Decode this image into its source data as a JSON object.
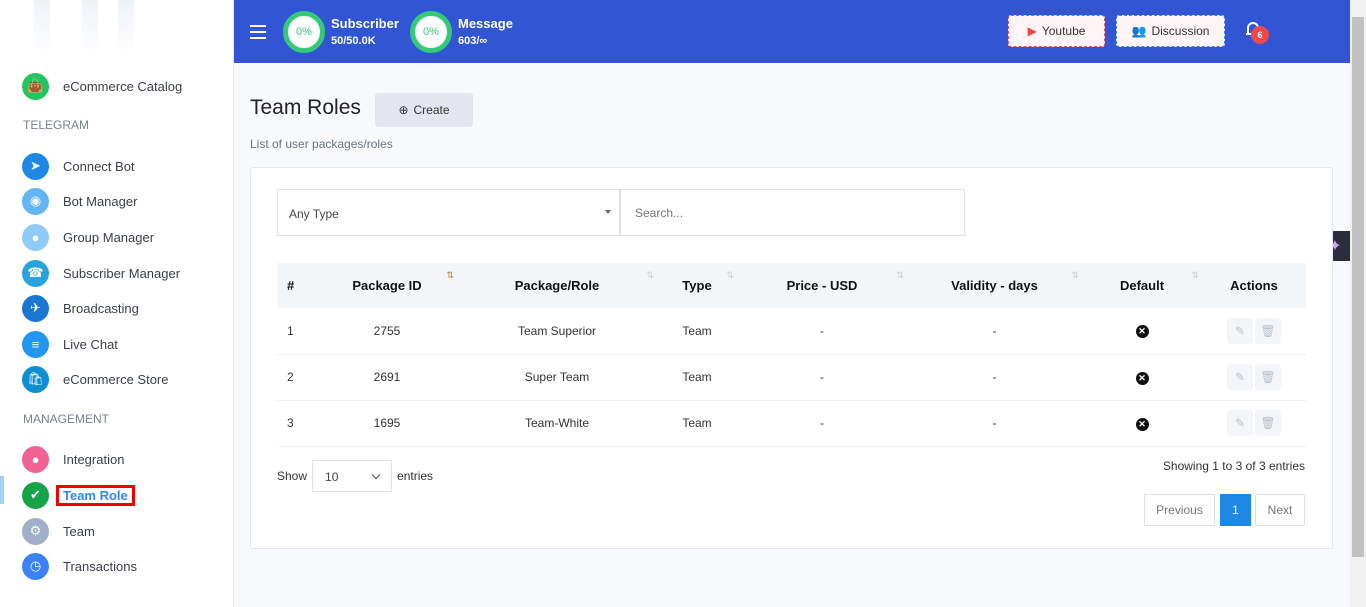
{
  "sidebar": {
    "items_top": [
      {
        "label": "eCommerce Catalog",
        "icon": "shopping-bag-icon",
        "color": "#22c55e"
      }
    ],
    "sections": [
      {
        "title": "TELEGRAM",
        "items": [
          {
            "label": "Connect Bot",
            "icon": "telegram-icon",
            "color": "#1e88e5"
          },
          {
            "label": "Bot Manager",
            "icon": "robot-icon",
            "color": "#64b5f6"
          },
          {
            "label": "Group Manager",
            "icon": "group-icon",
            "color": "#90caf9"
          },
          {
            "label": "Subscriber Manager",
            "icon": "contact-book-icon",
            "color": "#29a3e0"
          },
          {
            "label": "Broadcasting",
            "icon": "paper-plane-icon",
            "color": "#1976d2"
          },
          {
            "label": "Live Chat",
            "icon": "chat-bubble-icon",
            "color": "#2196f3"
          },
          {
            "label": "eCommerce Store",
            "icon": "store-bag-icon",
            "color": "#0d8fd1"
          }
        ]
      },
      {
        "title": "MANAGEMENT",
        "items": [
          {
            "label": "Integration",
            "icon": "integration-circles-icon",
            "color": "#f06292"
          },
          {
            "label": "Team Role",
            "icon": "shield-user-icon",
            "color": "#16a34a",
            "active": true
          },
          {
            "label": "Team",
            "icon": "gear-user-icon",
            "color": "#9fb0c8"
          },
          {
            "label": "Transactions",
            "icon": "clock-history-icon",
            "color": "#3b82f6"
          }
        ]
      }
    ]
  },
  "topbar": {
    "subscriber": {
      "percent": "0%",
      "label": "Subscriber",
      "value": "50/50.0K"
    },
    "message": {
      "percent": "0%",
      "label": "Message",
      "value": "603/∞"
    },
    "youtube": "Youtube",
    "discussion": "Discussion",
    "notifications": "6"
  },
  "page": {
    "title": "Team Roles",
    "create": "Create",
    "subtitle": "List of user packages/roles"
  },
  "filters": {
    "type": "Any Type",
    "search_placeholder": "Search..."
  },
  "table": {
    "headers": [
      "#",
      "Package ID",
      "Package/Role",
      "Type",
      "Price - USD",
      "Validity - days",
      "Default",
      "Actions"
    ],
    "rows": [
      {
        "n": "1",
        "id": "2755",
        "role": "Team Superior",
        "type": "Team",
        "price": "-",
        "validity": "-"
      },
      {
        "n": "2",
        "id": "2691",
        "role": "Super Team",
        "type": "Team",
        "price": "-",
        "validity": "-"
      },
      {
        "n": "3",
        "id": "1695",
        "role": "Team-White",
        "type": "Team",
        "price": "-",
        "validity": "-"
      }
    ]
  },
  "footer": {
    "show": "Show",
    "length": "10",
    "entries": "entries",
    "info": "Showing 1 to 3 of 3 entries",
    "previous": "Previous",
    "page": "1",
    "next": "Next"
  }
}
